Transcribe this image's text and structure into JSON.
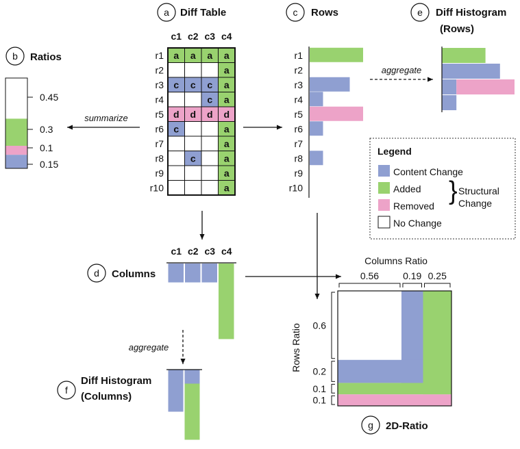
{
  "colors": {
    "content": "#8f9fd1",
    "added": "#99d26f",
    "removed": "#eda3c8",
    "none": "#ffffff",
    "line": "#111111"
  },
  "panel_a": {
    "letter": "a",
    "title": "Diff Table",
    "cols": [
      "c1",
      "c2",
      "c3",
      "c4"
    ],
    "rows": [
      "r1",
      "r2",
      "r3",
      "r4",
      "r5",
      "r6",
      "r7",
      "r8",
      "r9",
      "r10"
    ],
    "cells": [
      [
        "a",
        "a",
        "a",
        "a"
      ],
      [
        "",
        "",
        "",
        "a"
      ],
      [
        "c",
        "c",
        "c",
        "a"
      ],
      [
        "",
        "",
        "c",
        "a"
      ],
      [
        "d",
        "d",
        "d",
        "d"
      ],
      [
        "c",
        "",
        "",
        "a"
      ],
      [
        "",
        "",
        "",
        "a"
      ],
      [
        "",
        "c",
        "",
        "a"
      ],
      [
        "",
        "",
        "",
        "a"
      ],
      [
        "",
        "",
        "",
        "a"
      ]
    ]
  },
  "panel_b": {
    "letter": "b",
    "title": "Ratios",
    "segments": [
      {
        "kind": "none",
        "value": 0.45,
        "label": "0.45"
      },
      {
        "kind": "added",
        "value": 0.3,
        "label": "0.3"
      },
      {
        "kind": "removed",
        "value": 0.1,
        "label": "0.1"
      },
      {
        "kind": "content",
        "value": 0.15,
        "label": "0.15"
      }
    ],
    "arrow_label": "summarize"
  },
  "panel_c": {
    "letter": "c",
    "title": "Rows",
    "rows": [
      "r1",
      "r2",
      "r3",
      "r4",
      "r5",
      "r6",
      "r7",
      "r8",
      "r9",
      "r10"
    ],
    "bars": [
      {
        "kind": "added",
        "value": 4
      },
      {
        "kind": "none",
        "value": 0
      },
      {
        "kind": "content",
        "value": 3
      },
      {
        "kind": "content",
        "value": 1
      },
      {
        "kind": "removed",
        "value": 4
      },
      {
        "kind": "content",
        "value": 1
      },
      {
        "kind": "none",
        "value": 0
      },
      {
        "kind": "content",
        "value": 1
      },
      {
        "kind": "none",
        "value": 0
      },
      {
        "kind": "none",
        "value": 0
      }
    ]
  },
  "panel_d": {
    "letter": "d",
    "title": "Columns",
    "cols": [
      "c1",
      "c2",
      "c3",
      "c4"
    ],
    "bars": [
      {
        "kind": "content",
        "value": 2
      },
      {
        "kind": "content",
        "value": 2
      },
      {
        "kind": "content",
        "value": 2
      },
      {
        "kind": "added",
        "value": 8
      }
    ]
  },
  "panel_e": {
    "letter": "e",
    "title_line1": "Diff Histogram",
    "title_line2": "(Rows)",
    "arrow_label": "aggregate",
    "bars": [
      [
        {
          "kind": "added",
          "value": 3
        }
      ],
      [
        {
          "kind": "content",
          "value": 4
        }
      ],
      [
        {
          "kind": "content",
          "value": 1
        },
        {
          "kind": "removed",
          "value": 4
        }
      ],
      [
        {
          "kind": "content",
          "value": 1
        }
      ]
    ]
  },
  "panel_f": {
    "letter": "f",
    "title_line1": "Diff Histogram",
    "title_line2": "(Columns)",
    "arrow_label": "aggregate",
    "cols": [
      [
        {
          "kind": "content",
          "value": 3
        }
      ],
      [
        {
          "kind": "content",
          "value": 1
        },
        {
          "kind": "added",
          "value": 4
        }
      ]
    ]
  },
  "panel_g": {
    "letter": "g",
    "title": "2D-Ratio",
    "columns_title": "Columns Ratio",
    "col_ratios": [
      "0.56",
      "0.19",
      "0.25"
    ],
    "rows_title": "Rows Ratio",
    "row_ratios": [
      "0.6",
      "0.2",
      "0.1",
      "0.1"
    ]
  },
  "legend": {
    "title": "Legend",
    "items": [
      {
        "kind": "content",
        "label": "Content Change"
      },
      {
        "kind": "added",
        "label": "Added"
      },
      {
        "kind": "removed",
        "label": "Removed"
      },
      {
        "kind": "none",
        "label": "No Change"
      }
    ],
    "structural_line1": "Structural",
    "structural_line2": "Change"
  }
}
